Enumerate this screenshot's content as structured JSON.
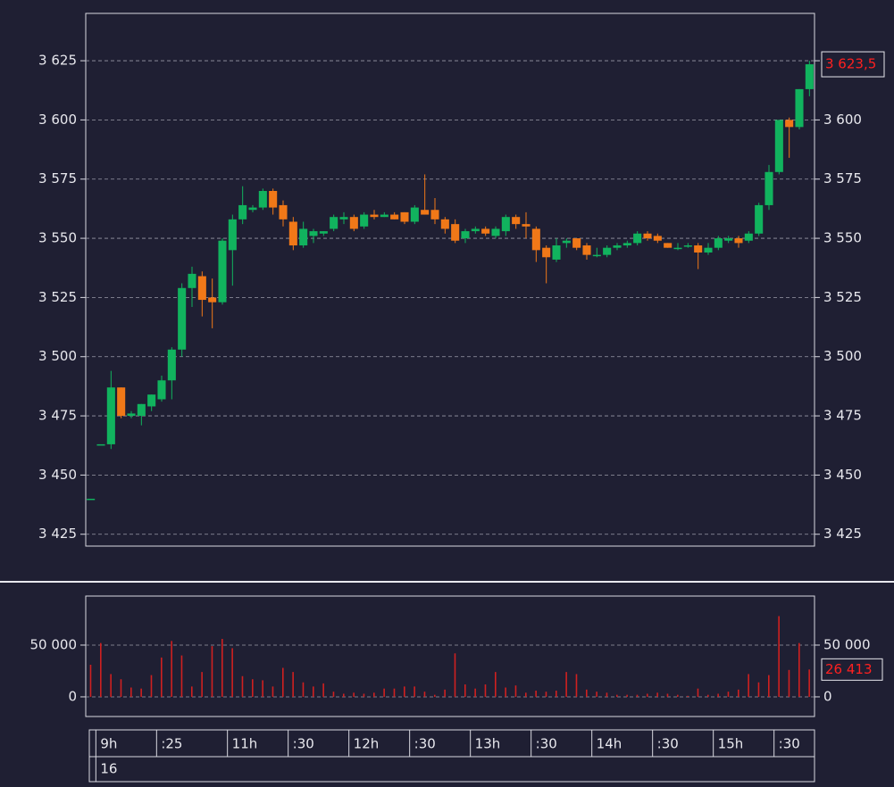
{
  "chart_data": {
    "type": "candlestick",
    "up_color": "#11b35e",
    "down_color": "#f07818",
    "volume_color": "#d02020",
    "last_color": "#ff2020",
    "grid": true,
    "open": [
      3440,
      3463,
      3463,
      3487,
      3475,
      3475,
      3479,
      3482,
      3490,
      3503,
      3529,
      3534,
      3525,
      3523,
      3545,
      3558,
      3562,
      3563,
      3570,
      3564,
      3557,
      3547,
      3551,
      3552,
      3554,
      3558,
      3559,
      3555,
      3560,
      3559,
      3560,
      3561,
      3557,
      3562,
      3562,
      3558,
      3556,
      3550,
      3553,
      3554,
      3551,
      3553,
      3559,
      3556,
      3554,
      3546,
      3541,
      3548,
      3550,
      3547,
      3543,
      3543,
      3546,
      3547,
      3548,
      3552,
      3551,
      3548,
      3546,
      3547,
      3547,
      3544,
      3546,
      3549,
      3550,
      3549,
      3552,
      3564,
      3578,
      3600,
      3597,
      3613
    ],
    "high": [
      3440,
      3463,
      3494,
      3487,
      3477,
      3480,
      3484,
      3492,
      3504,
      3531,
      3538,
      3536,
      3533,
      3550,
      3560,
      3572,
      3564,
      3571,
      3571,
      3566,
      3559,
      3557,
      3554,
      3553,
      3560,
      3561,
      3560,
      3561,
      3562,
      3561,
      3561,
      3561,
      3564,
      3577,
      3567,
      3559,
      3558,
      3554,
      3555,
      3555,
      3555,
      3560,
      3560,
      3561,
      3555,
      3547,
      3550,
      3550,
      3550,
      3548,
      3546,
      3547,
      3548,
      3549,
      3553,
      3553,
      3552,
      3548,
      3548,
      3548,
      3548,
      3548,
      3551,
      3551,
      3551,
      3553,
      3565,
      3581,
      3600,
      3601,
      3613,
      3625
    ],
    "low": [
      3440,
      3463,
      3461,
      3474,
      3474,
      3471,
      3477,
      3481,
      3482,
      3500,
      3521,
      3517,
      3512,
      3522,
      3530,
      3556,
      3561,
      3562,
      3560,
      3555,
      3545,
      3546,
      3548,
      3551,
      3553,
      3556,
      3553,
      3554,
      3558,
      3559,
      3558,
      3556,
      3556,
      3560,
      3556,
      3552,
      3548,
      3548,
      3552,
      3551,
      3550,
      3551,
      3554,
      3550,
      3540,
      3531,
      3540,
      3546,
      3545,
      3541,
      3542,
      3542,
      3545,
      3546,
      3547,
      3549,
      3548,
      3546,
      3545,
      3546,
      3537,
      3543,
      3545,
      3548,
      3546,
      3548,
      3551,
      3562,
      3577,
      3584,
      3596,
      3610
    ],
    "close": [
      3440,
      3463,
      3487,
      3475,
      3476,
      3480,
      3484,
      3490,
      3503,
      3529,
      3535,
      3524,
      3523,
      3549,
      3558,
      3564,
      3563,
      3570,
      3563,
      3558,
      3547,
      3554,
      3553,
      3553,
      3559,
      3559,
      3554,
      3560,
      3559,
      3560,
      3558,
      3557,
      3563,
      3560,
      3558,
      3554,
      3549,
      3553,
      3554,
      3552,
      3554,
      3559,
      3556,
      3555,
      3545,
      3542,
      3547,
      3549,
      3546,
      3543,
      3543,
      3546,
      3547,
      3548,
      3552,
      3550,
      3549,
      3546,
      3546,
      3547,
      3544,
      3546,
      3550,
      3550,
      3548,
      3552,
      3564,
      3578,
      3600,
      3597,
      3613,
      3623.5
    ],
    "volume": [
      31000,
      52000,
      22000,
      17000,
      9000,
      8000,
      21000,
      38000,
      54000,
      40000,
      10000,
      24000,
      49000,
      56000,
      47000,
      20000,
      17000,
      16000,
      10000,
      28000,
      24000,
      14000,
      10000,
      13000,
      5000,
      3000,
      4000,
      3000,
      4000,
      8000,
      8000,
      10000,
      10000,
      5000,
      2000,
      7000,
      42000,
      12000,
      8000,
      12000,
      24000,
      9000,
      11000,
      4000,
      6000,
      5000,
      6000,
      24000,
      22000,
      7000,
      5000,
      4000,
      2000,
      2000,
      2000,
      3000,
      4000,
      3000,
      2000,
      1000,
      8000,
      2000,
      3000,
      5000,
      7000,
      22000,
      14000,
      21000,
      78000,
      26000,
      52000,
      26413
    ],
    "ylim": [
      3420,
      3645
    ],
    "yticks": [
      {
        "value": 3425,
        "label": "3 425"
      },
      {
        "value": 3450,
        "label": "3 450"
      },
      {
        "value": 3475,
        "label": "3 475"
      },
      {
        "value": 3500,
        "label": "3 500"
      },
      {
        "value": 3525,
        "label": "3 525"
      },
      {
        "value": 3550,
        "label": "3 550"
      },
      {
        "value": 3575,
        "label": "3 575"
      },
      {
        "value": 3600,
        "label": "3 600"
      },
      {
        "value": 3625,
        "label": "3 625"
      }
    ],
    "y2lim": [
      -19000,
      97400
    ],
    "y2ticks": [
      0,
      {
        "value": 50000,
        "label": "50 000"
      }
    ],
    "xticks": [
      {
        "value": 1,
        "label": "9h"
      },
      {
        "value": 7,
        "label": ":25"
      },
      {
        "value": 14,
        "label": "11h"
      },
      {
        "value": 20,
        "label": ":30"
      },
      {
        "value": 26,
        "label": "12h"
      },
      {
        "value": 32,
        "label": ":30"
      },
      {
        "value": 38,
        "label": "13h"
      },
      {
        "value": 44,
        "label": ":30"
      },
      {
        "value": 50,
        "label": "14h"
      },
      {
        "value": 56,
        "label": ":30"
      },
      {
        "value": 62,
        "label": "15h"
      },
      {
        "value": 68,
        "label": ":30"
      }
    ],
    "date_ticks": [
      {
        "value": 1,
        "label": "16"
      }
    ],
    "last_label": "3 623,5",
    "volume_last_label": "26 413"
  }
}
